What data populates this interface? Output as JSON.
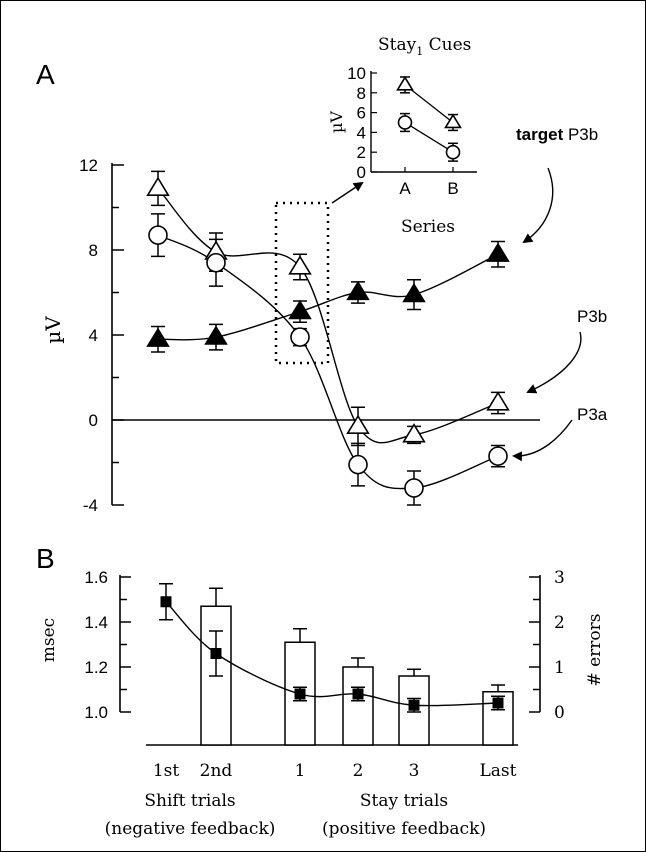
{
  "chart_data": [
    {
      "type": "line",
      "panel_letter": "A",
      "ylabel": "µV",
      "ylim": [
        -4,
        12
      ],
      "yticks": [
        "12",
        "8",
        "4",
        "0",
        "-4"
      ],
      "x": [
        1,
        2,
        3,
        4,
        5,
        6
      ],
      "series": [
        {
          "name": "target P3b",
          "marker": "filled-triangle",
          "values": [
            3.8,
            3.9,
            5.1,
            6.0,
            5.9,
            7.8
          ],
          "errors": [
            0.6,
            0.6,
            0.5,
            0.5,
            0.7,
            0.6
          ]
        },
        {
          "name": "P3b",
          "marker": "open-triangle",
          "values": [
            10.9,
            7.9,
            7.2,
            -0.3,
            -0.7,
            0.8
          ],
          "errors": [
            0.8,
            0.9,
            0.6,
            0.9,
            0.4,
            0.5
          ]
        },
        {
          "name": "P3a",
          "marker": "open-circle",
          "values": [
            8.7,
            7.4,
            3.9,
            -2.1,
            -3.2,
            -1.7
          ],
          "errors": [
            1.0,
            1.1,
            0.4,
            1.0,
            0.8,
            0.5
          ]
        }
      ],
      "inset": {
        "title": "Stay",
        "title_subscript": "1",
        "title_suffix": " Cues",
        "ylabel": "µV",
        "xlabel": "Series",
        "categories": [
          "A",
          "B"
        ],
        "yticks": [
          "10",
          "8",
          "6",
          "4",
          "2",
          "0"
        ],
        "ylim": [
          0,
          10
        ],
        "series": [
          {
            "marker": "open-triangle",
            "values": [
              8.8,
              5.0
            ],
            "errors": [
              0.8,
              0.8
            ]
          },
          {
            "marker": "open-circle",
            "values": [
              5.0,
              2.0
            ],
            "errors": [
              0.9,
              0.9
            ]
          }
        ]
      }
    },
    {
      "type": "bar",
      "panel_letter": "B",
      "ylabel": "msec",
      "y2label": "# errors",
      "ylim": [
        1.0,
        1.6
      ],
      "yticks": [
        "1.6",
        "1.4",
        "1.2",
        "1.0"
      ],
      "y2lim": [
        0,
        3
      ],
      "y2ticks": [
        "3",
        "2",
        "1",
        "0"
      ],
      "categories": [
        "1st",
        "2nd",
        "1",
        "2",
        "3",
        "Last"
      ],
      "bars": {
        "values": [
          null,
          2.35,
          1.55,
          1.0,
          0.8,
          0.45
        ],
        "errors": [
          null,
          0.4,
          0.3,
          0.2,
          0.15,
          0.15
        ]
      },
      "points": {
        "values": [
          1.49,
          1.26,
          1.08,
          1.08,
          1.03,
          1.04
        ],
        "errors": [
          0.08,
          0.1,
          0.03,
          0.03,
          0.03,
          0.03
        ]
      },
      "groups": [
        {
          "label": "Shift trials",
          "sublabel": "(negative feedback)"
        },
        {
          "label": "Stay trials",
          "sublabel": "(positive feedback)"
        }
      ]
    }
  ]
}
